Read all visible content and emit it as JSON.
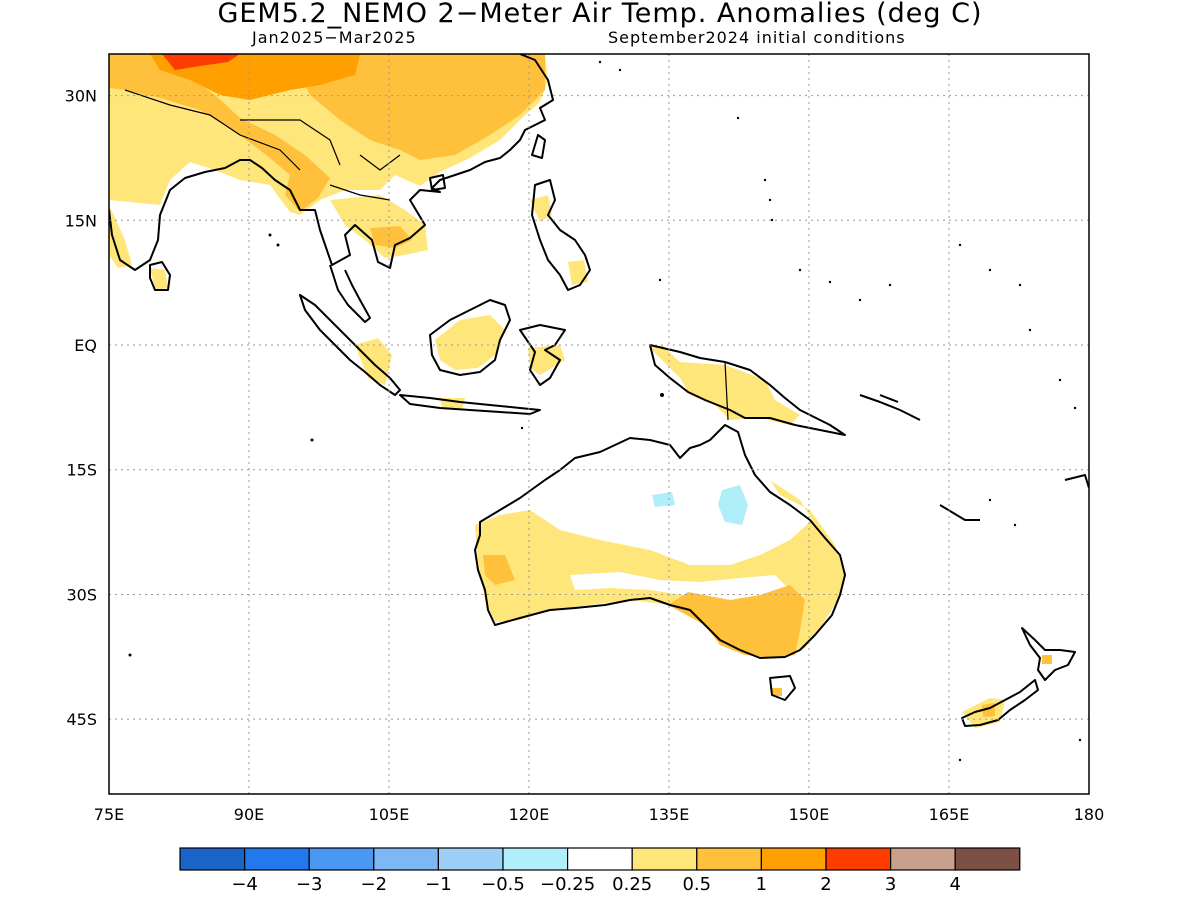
{
  "header": {
    "title": "GEM5.2_NEMO 2−Meter Air Temp. Anomalies (deg C)",
    "period": "Jan2025−Mar2025",
    "initial_conditions": "September2024 initial conditions"
  },
  "map": {
    "lon_range": [
      75,
      180
    ],
    "lat_range": [
      -54,
      35
    ],
    "lon_ticks": [
      "75E",
      "90E",
      "105E",
      "120E",
      "135E",
      "150E",
      "165E",
      "180"
    ],
    "lat_ticks": [
      "30N",
      "15N",
      "EQ",
      "15S",
      "30S",
      "45S"
    ]
  },
  "legend": {
    "colors": [
      "#1a64c8",
      "#2378ee",
      "#4a98f2",
      "#7db8f5",
      "#9ed0f7",
      "#b0eefa",
      "#ffffff",
      "#ffe67a",
      "#ffc03c",
      "#ffa000",
      "#ff3c00",
      "#c8a08c",
      "#7d5046"
    ],
    "labels": [
      "−4",
      "−3",
      "−2",
      "−1",
      "−0.5",
      "−0.25",
      "0.25",
      "0.5",
      "1",
      "2",
      "3",
      "4"
    ]
  }
}
